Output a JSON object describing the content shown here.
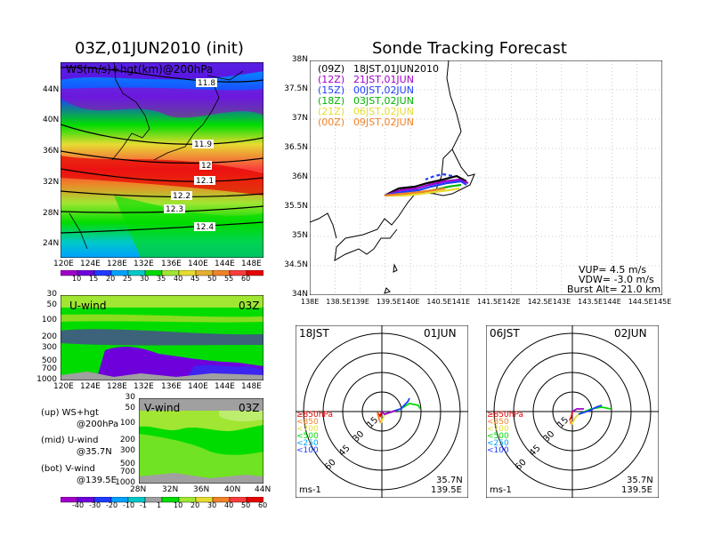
{
  "left_title": "03Z,01JUN2010 (init)",
  "right_title": "Sonde Tracking Forecast",
  "upper_map": {
    "label": "WS(m/s)+hgt(km)@200hPa",
    "lat_ticks": [
      "44N",
      "40N",
      "36N",
      "32N",
      "28N",
      "24N"
    ],
    "lon_ticks": [
      "120E",
      "124E",
      "128E",
      "132E",
      "136E",
      "140E",
      "144E",
      "148E"
    ],
    "contour_labels": [
      "11.8",
      "11.9",
      "12",
      "12.1",
      "12.2",
      "12.3",
      "12.4"
    ],
    "colorbar_ticks": [
      "10",
      "15",
      "20",
      "25",
      "30",
      "35",
      "40",
      "45",
      "50",
      "55",
      "60"
    ],
    "colorbar_colors": [
      "#a000c8",
      "#6e00dc",
      "#1e3cff",
      "#00a0ff",
      "#00c8c8",
      "#00dc00",
      "#a0e632",
      "#e6dc32",
      "#e6af2d",
      "#f08228",
      "#fa3c3c",
      "#e60000"
    ]
  },
  "u_wind": {
    "title": "U-wind",
    "time": "03Z",
    "p_ticks": [
      "30",
      "50",
      "100",
      "200",
      "300",
      "500",
      "700",
      "1000"
    ],
    "lon_ticks": [
      "120E",
      "124E",
      "128E",
      "132E",
      "136E",
      "140E",
      "144E",
      "148E"
    ]
  },
  "v_wind": {
    "title": "V-wind",
    "time": "03Z",
    "p_ticks": [
      "30",
      "50",
      "100",
      "200",
      "300",
      "500",
      "700",
      "1000"
    ],
    "lat_ticks": [
      "28N",
      "32N",
      "36N",
      "40N",
      "44N"
    ]
  },
  "legend_notes": [
    {
      "a": "(up)  WS+hgt",
      "b": "@200hPa"
    },
    {
      "a": "(mid)  U-wind",
      "b": "@35.7N"
    },
    {
      "a": "(bot)  V-wind",
      "b": "@139.5E"
    }
  ],
  "bottom_colorbar": {
    "ticks": [
      "-40",
      "-30",
      "-20",
      "-10",
      "-1",
      "1",
      "10",
      "20",
      "30",
      "40",
      "50",
      "60"
    ],
    "colors": [
      "#a000c8",
      "#6e00dc",
      "#1e3cff",
      "#00a0ff",
      "#00c8c8",
      "#a0a0a0",
      "#00dc00",
      "#a0e632",
      "#e6dc32",
      "#f08228",
      "#fa3c3c",
      "#e60000"
    ]
  },
  "track_map": {
    "lat_ticks": [
      "38N",
      "37.5N",
      "37N",
      "36.5N",
      "36N",
      "35.5N",
      "35N",
      "34.5N",
      "34N"
    ],
    "lon_ticks": [
      "138E",
      "138.5E",
      "139E",
      "139.5E",
      "140E",
      "140.5E",
      "141E",
      "141.5E",
      "142E",
      "142.5E",
      "143E",
      "143.5E",
      "144E",
      "144.5E",
      "145E"
    ],
    "legend": [
      {
        "code": "(09Z)",
        "time": "18JST,01JUN2010",
        "color": "#000000"
      },
      {
        "code": "(12Z)",
        "time": "21JST,01JUN",
        "color": "#a000c8"
      },
      {
        "code": "(15Z)",
        "time": "00JST,02JUN",
        "color": "#1e3cff"
      },
      {
        "code": "(18Z)",
        "time": "03JST,02JUN",
        "color": "#00b400"
      },
      {
        "code": "(21Z)",
        "time": "06JST,02JUN",
        "color": "#e6dc32"
      },
      {
        "code": "(00Z)",
        "time": "09JST,02JUN",
        "color": "#f08228"
      }
    ],
    "vup": "VUP= 4.5 m/s",
    "vdw": "VDW= -3.0 m/s",
    "burst": "Burst Alt= 21.0 km"
  },
  "hodo1": {
    "time": "18JST",
    "date": "01JUN",
    "lat": "35.7N",
    "lon": "139.5E",
    "unit": "ms-1"
  },
  "hodo2": {
    "time": "06JST",
    "date": "02JUN",
    "lat": "35.7N",
    "lon": "139.5E",
    "unit": "ms-1"
  },
  "hodo_rings": [
    "15",
    "30",
    "45",
    "60"
  ],
  "hodo_levels": [
    {
      "text": "≥850hPa",
      "color": "#e60000"
    },
    {
      "text": "<850",
      "color": "#f08228"
    },
    {
      "text": "<700",
      "color": "#e6dc32"
    },
    {
      "text": "<500",
      "color": "#00dc00"
    },
    {
      "text": "<250",
      "color": "#00a0ff"
    },
    {
      "text": "<100",
      "color": "#1e3cff"
    }
  ]
}
